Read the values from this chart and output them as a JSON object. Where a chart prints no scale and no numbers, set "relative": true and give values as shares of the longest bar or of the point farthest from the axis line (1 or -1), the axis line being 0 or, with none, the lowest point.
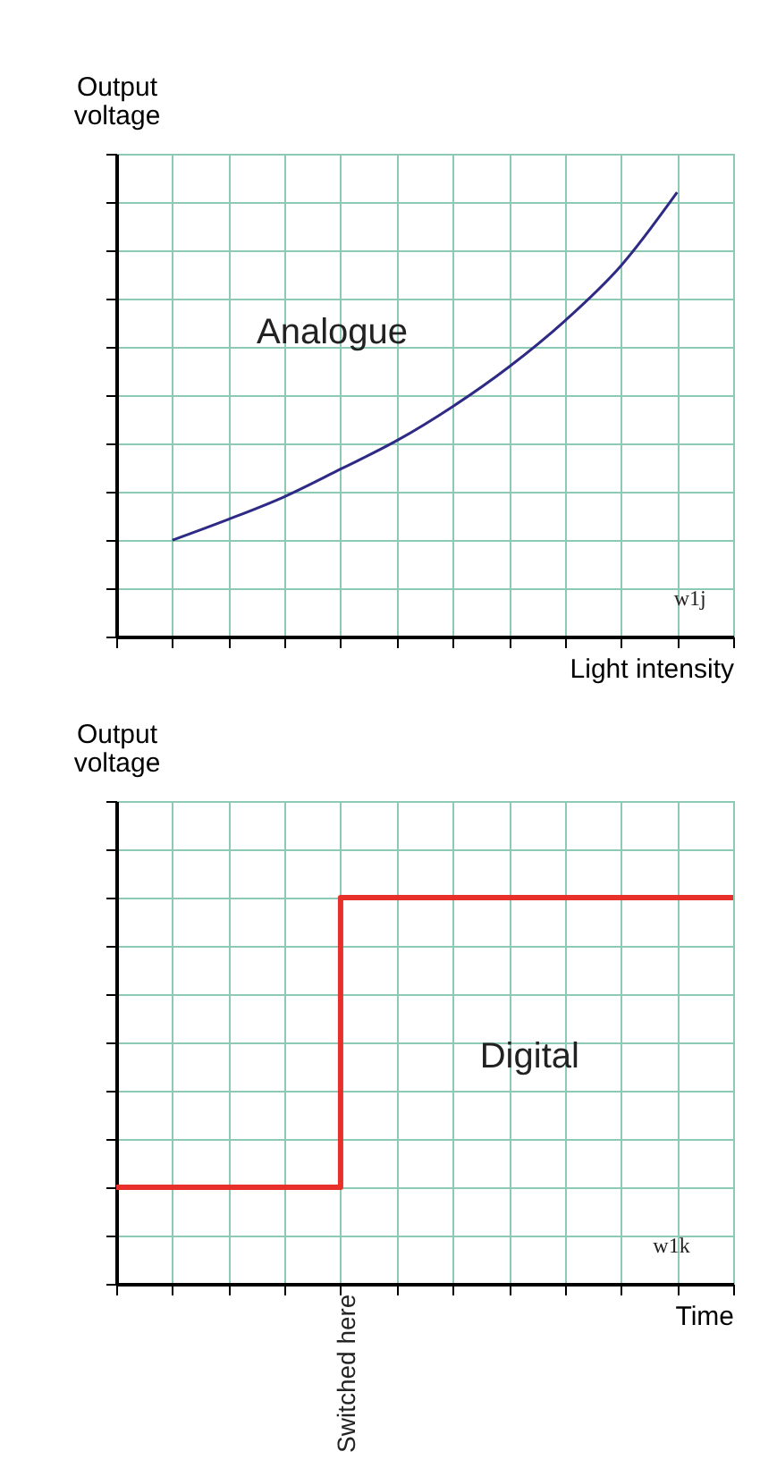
{
  "chart_data": [
    {
      "type": "line",
      "relative": true,
      "xlabel": "Light intensity",
      "ylabel": "Output voltage",
      "grid": true,
      "tick_labels": false,
      "categories": [
        null,
        null,
        null,
        null,
        null,
        null,
        null,
        null,
        null,
        null,
        null,
        null
      ],
      "series": [
        {
          "color": "#2e2a86",
          "values": [
            null,
            0.217,
            0.264,
            0.315,
            0.377,
            0.441,
            0.518,
            0.607,
            0.711,
            0.835,
            1.0,
            null
          ]
        }
      ],
      "annotations": [
        "Analogue",
        "w1j"
      ]
    },
    {
      "type": "step",
      "relative": true,
      "xlabel": "Time",
      "ylabel": "Output voltage",
      "grid": true,
      "tick_labels": false,
      "categories": [
        null,
        null,
        null,
        null,
        null,
        null,
        null,
        null,
        null,
        null,
        null,
        null
      ],
      "series": [
        {
          "color": "#e8302a",
          "values": [
            0.25,
            0.25,
            0.25,
            0.25,
            1,
            1,
            1,
            1,
            1,
            1,
            1,
            1
          ]
        }
      ],
      "annotations": [
        "Digital",
        "w1k",
        "Switched here"
      ]
    }
  ]
}
